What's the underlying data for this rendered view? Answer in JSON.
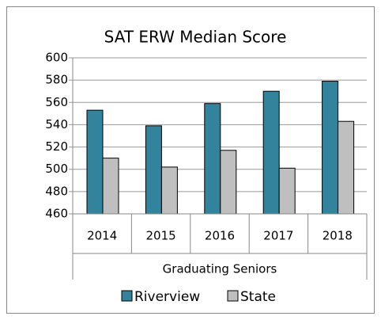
{
  "chart_data": {
    "type": "bar",
    "title": "SAT ERW Median Score",
    "x_label": "Graduating Seniors",
    "categories": [
      "2014",
      "2015",
      "2016",
      "2017",
      "2018"
    ],
    "series": [
      {
        "name": "Riverview",
        "color": "#31849b",
        "values": [
          553,
          539,
          559,
          570,
          579
        ]
      },
      {
        "name": "State",
        "color": "#bfbfbf",
        "values": [
          510,
          502,
          517,
          501,
          543
        ]
      }
    ],
    "ylim": [
      460,
      600
    ],
    "yticks": [
      460,
      480,
      500,
      520,
      540,
      560,
      580,
      600
    ],
    "grid": true,
    "legend": "bottom"
  }
}
